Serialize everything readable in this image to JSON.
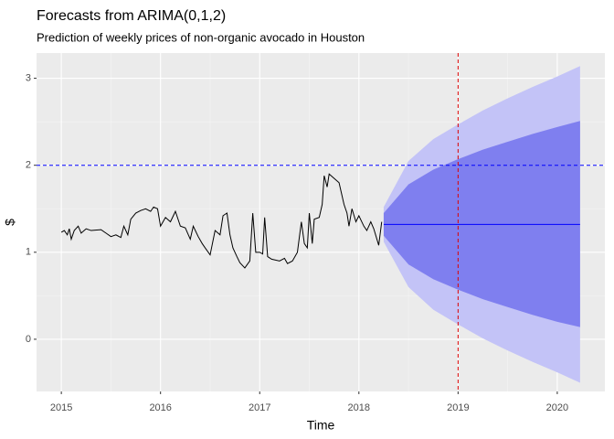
{
  "chart_data": {
    "type": "line",
    "title": "Forecasts from ARIMA(0,1,2)",
    "subtitle": "Prediction of weekly prices of non-organic avocado in Houston",
    "xlabel": "Time",
    "ylabel": "$",
    "xlim": [
      2014.75,
      2020.48
    ],
    "ylim": [
      -0.6,
      3.29
    ],
    "xticks": [
      2015,
      2016,
      2017,
      2018,
      2019,
      2020
    ],
    "yticks": [
      0,
      1,
      2,
      3
    ],
    "grid": true,
    "history": {
      "color": "#000000",
      "x": [
        2015.0,
        2015.03,
        2015.06,
        2015.08,
        2015.1,
        2015.13,
        2015.17,
        2015.2,
        2015.25,
        2015.3,
        2015.4,
        2015.45,
        2015.5,
        2015.55,
        2015.6,
        2015.63,
        2015.67,
        2015.7,
        2015.75,
        2015.8,
        2015.85,
        2015.9,
        2015.93,
        2015.97,
        2016.0,
        2016.05,
        2016.1,
        2016.15,
        2016.2,
        2016.25,
        2016.3,
        2016.33,
        2016.38,
        2016.42,
        2016.45,
        2016.5,
        2016.55,
        2016.6,
        2016.63,
        2016.67,
        2016.7,
        2016.73,
        2016.77,
        2016.8,
        2016.85,
        2016.9,
        2016.93,
        2016.96,
        2017.0,
        2017.03,
        2017.05,
        2017.08,
        2017.12,
        2017.2,
        2017.25,
        2017.28,
        2017.33,
        2017.38,
        2017.42,
        2017.45,
        2017.48,
        2017.5,
        2017.53,
        2017.55,
        2017.6,
        2017.63,
        2017.65,
        2017.68,
        2017.7,
        2017.75,
        2017.8,
        2017.85,
        2017.88,
        2017.9,
        2017.93,
        2017.97,
        2018.0,
        2018.05,
        2018.08,
        2018.12,
        2018.15,
        2018.2,
        2018.23
      ],
      "values": [
        1.23,
        1.25,
        1.2,
        1.27,
        1.15,
        1.25,
        1.3,
        1.22,
        1.27,
        1.25,
        1.26,
        1.22,
        1.18,
        1.2,
        1.17,
        1.3,
        1.2,
        1.38,
        1.45,
        1.48,
        1.5,
        1.47,
        1.52,
        1.5,
        1.3,
        1.4,
        1.35,
        1.47,
        1.3,
        1.28,
        1.15,
        1.3,
        1.18,
        1.1,
        1.05,
        0.97,
        1.25,
        1.2,
        1.42,
        1.45,
        1.2,
        1.05,
        0.95,
        0.88,
        0.82,
        0.9,
        1.45,
        1.0,
        1.0,
        0.98,
        1.4,
        0.95,
        0.92,
        0.9,
        0.93,
        0.87,
        0.9,
        1.0,
        1.35,
        1.1,
        1.05,
        1.45,
        1.1,
        1.38,
        1.4,
        1.55,
        1.88,
        1.75,
        1.9,
        1.85,
        1.8,
        1.55,
        1.45,
        1.3,
        1.5,
        1.35,
        1.42,
        1.3,
        1.25,
        1.35,
        1.27,
        1.08,
        1.35
      ]
    },
    "forecast": {
      "color": "#0000ff",
      "color80": "#7f7fef",
      "color95": "#c3c3f7",
      "x": [
        2018.25,
        2018.5,
        2018.75,
        2019.0,
        2019.25,
        2019.5,
        2019.75,
        2020.0,
        2020.23
      ],
      "mean": [
        1.32,
        1.32,
        1.32,
        1.32,
        1.32,
        1.32,
        1.32,
        1.32,
        1.32
      ],
      "hi80": [
        1.45,
        1.78,
        1.95,
        2.07,
        2.18,
        2.27,
        2.36,
        2.44,
        2.51
      ],
      "lo80": [
        1.19,
        0.86,
        0.69,
        0.57,
        0.46,
        0.37,
        0.28,
        0.2,
        0.14
      ],
      "hi95": [
        1.52,
        2.05,
        2.3,
        2.47,
        2.63,
        2.77,
        2.9,
        3.02,
        3.14
      ],
      "lo95": [
        1.12,
        0.6,
        0.34,
        0.17,
        0.01,
        -0.13,
        -0.26,
        -0.38,
        -0.5
      ]
    },
    "hline": {
      "value": 2,
      "color": "#0000ff"
    },
    "vline": {
      "value": 2019,
      "color": "#dd0000"
    }
  }
}
